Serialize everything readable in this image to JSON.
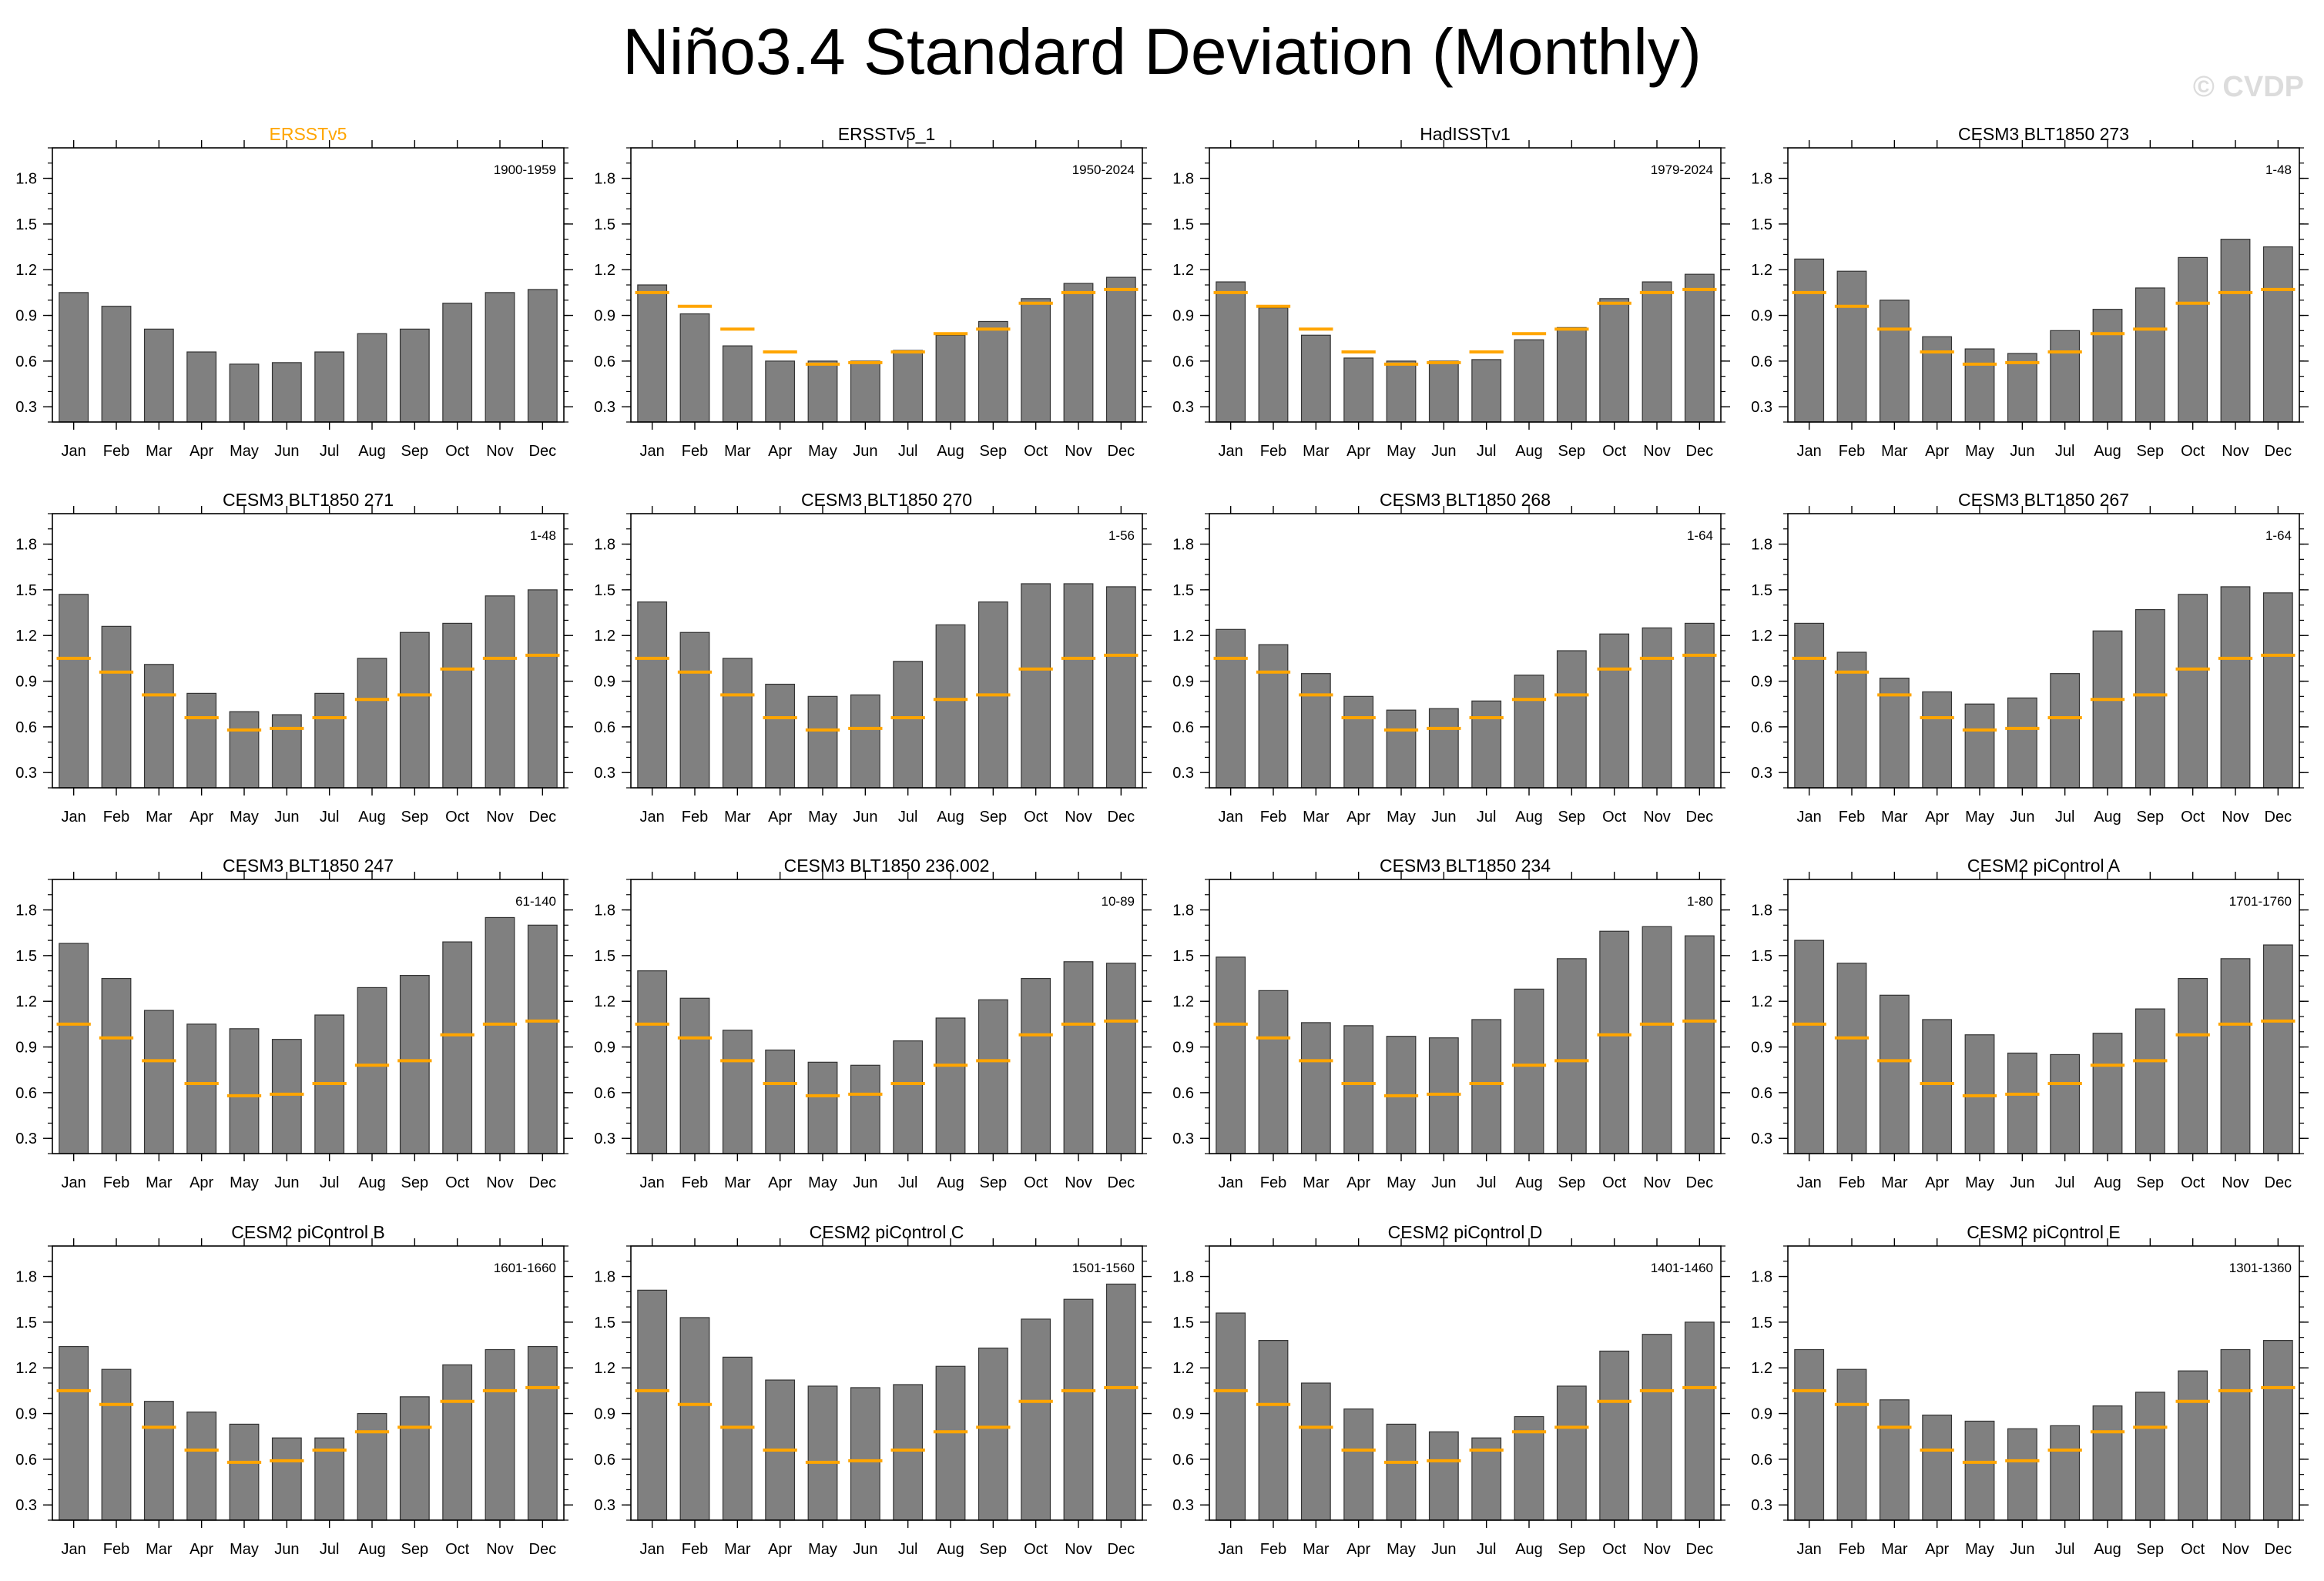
{
  "title": "Niño3.4 Standard Deviation (Monthly)",
  "watermark": "© CVDP",
  "colors": {
    "bar": "#808080",
    "bar_edge": "#333333",
    "reference": "#ffa500",
    "reference_title": "#ffa500",
    "text": "#000000"
  },
  "months": [
    "Jan",
    "Feb",
    "Mar",
    "Apr",
    "May",
    "Jun",
    "Jul",
    "Aug",
    "Sep",
    "Oct",
    "Nov",
    "Dec"
  ],
  "chart_data": [
    {
      "type": "bar",
      "title": "ERSSTv5",
      "title_color": "#ffa500",
      "period": "1900-1959",
      "ylim": [
        0.2,
        2.0
      ],
      "yticks": [
        0.3,
        0.6,
        0.9,
        1.2,
        1.5,
        1.8
      ],
      "categories": [
        "Jan",
        "Feb",
        "Mar",
        "Apr",
        "May",
        "Jun",
        "Jul",
        "Aug",
        "Sep",
        "Oct",
        "Nov",
        "Dec"
      ],
      "values": [
        1.05,
        0.96,
        0.81,
        0.66,
        0.58,
        0.59,
        0.66,
        0.78,
        0.81,
        0.98,
        1.05,
        1.07
      ],
      "reference": null
    },
    {
      "type": "bar",
      "title": "ERSSTv5_1",
      "title_color": "#000000",
      "period": "1950-2024",
      "ylim": [
        0.2,
        2.0
      ],
      "yticks": [
        0.3,
        0.6,
        0.9,
        1.2,
        1.5,
        1.8
      ],
      "categories": [
        "Jan",
        "Feb",
        "Mar",
        "Apr",
        "May",
        "Jun",
        "Jul",
        "Aug",
        "Sep",
        "Oct",
        "Nov",
        "Dec"
      ],
      "values": [
        1.1,
        0.91,
        0.7,
        0.6,
        0.6,
        0.6,
        0.67,
        0.77,
        0.86,
        1.01,
        1.11,
        1.15
      ],
      "reference": [
        1.05,
        0.96,
        0.81,
        0.66,
        0.58,
        0.59,
        0.66,
        0.78,
        0.81,
        0.98,
        1.05,
        1.07
      ]
    },
    {
      "type": "bar",
      "title": "HadISSTv1",
      "title_color": "#000000",
      "period": "1979-2024",
      "ylim": [
        0.2,
        2.0
      ],
      "yticks": [
        0.3,
        0.6,
        0.9,
        1.2,
        1.5,
        1.8
      ],
      "categories": [
        "Jan",
        "Feb",
        "Mar",
        "Apr",
        "May",
        "Jun",
        "Jul",
        "Aug",
        "Sep",
        "Oct",
        "Nov",
        "Dec"
      ],
      "values": [
        1.12,
        0.95,
        0.77,
        0.62,
        0.6,
        0.6,
        0.61,
        0.74,
        0.82,
        1.01,
        1.12,
        1.17
      ],
      "reference": [
        1.05,
        0.96,
        0.81,
        0.66,
        0.58,
        0.59,
        0.66,
        0.78,
        0.81,
        0.98,
        1.05,
        1.07
      ]
    },
    {
      "type": "bar",
      "title": "CESM3 BLT1850 273",
      "title_color": "#000000",
      "period": "1-48",
      "ylim": [
        0.2,
        2.0
      ],
      "yticks": [
        0.3,
        0.6,
        0.9,
        1.2,
        1.5,
        1.8
      ],
      "categories": [
        "Jan",
        "Feb",
        "Mar",
        "Apr",
        "May",
        "Jun",
        "Jul",
        "Aug",
        "Sep",
        "Oct",
        "Nov",
        "Dec"
      ],
      "values": [
        1.27,
        1.19,
        1.0,
        0.76,
        0.68,
        0.65,
        0.8,
        0.94,
        1.08,
        1.28,
        1.4,
        1.35
      ],
      "reference": [
        1.05,
        0.96,
        0.81,
        0.66,
        0.58,
        0.59,
        0.66,
        0.78,
        0.81,
        0.98,
        1.05,
        1.07
      ]
    },
    {
      "type": "bar",
      "title": "CESM3 BLT1850 271",
      "title_color": "#000000",
      "period": "1-48",
      "ylim": [
        0.2,
        2.0
      ],
      "yticks": [
        0.3,
        0.6,
        0.9,
        1.2,
        1.5,
        1.8
      ],
      "categories": [
        "Jan",
        "Feb",
        "Mar",
        "Apr",
        "May",
        "Jun",
        "Jul",
        "Aug",
        "Sep",
        "Oct",
        "Nov",
        "Dec"
      ],
      "values": [
        1.47,
        1.26,
        1.01,
        0.82,
        0.7,
        0.68,
        0.82,
        1.05,
        1.22,
        1.28,
        1.46,
        1.5
      ],
      "reference": [
        1.05,
        0.96,
        0.81,
        0.66,
        0.58,
        0.59,
        0.66,
        0.78,
        0.81,
        0.98,
        1.05,
        1.07
      ]
    },
    {
      "type": "bar",
      "title": "CESM3 BLT1850 270",
      "title_color": "#000000",
      "period": "1-56",
      "ylim": [
        0.2,
        2.0
      ],
      "yticks": [
        0.3,
        0.6,
        0.9,
        1.2,
        1.5,
        1.8
      ],
      "categories": [
        "Jan",
        "Feb",
        "Mar",
        "Apr",
        "May",
        "Jun",
        "Jul",
        "Aug",
        "Sep",
        "Oct",
        "Nov",
        "Dec"
      ],
      "values": [
        1.42,
        1.22,
        1.05,
        0.88,
        0.8,
        0.81,
        1.03,
        1.27,
        1.42,
        1.54,
        1.54,
        1.52
      ],
      "reference": [
        1.05,
        0.96,
        0.81,
        0.66,
        0.58,
        0.59,
        0.66,
        0.78,
        0.81,
        0.98,
        1.05,
        1.07
      ]
    },
    {
      "type": "bar",
      "title": "CESM3 BLT1850 268",
      "title_color": "#000000",
      "period": "1-64",
      "ylim": [
        0.2,
        2.0
      ],
      "yticks": [
        0.3,
        0.6,
        0.9,
        1.2,
        1.5,
        1.8
      ],
      "categories": [
        "Jan",
        "Feb",
        "Mar",
        "Apr",
        "May",
        "Jun",
        "Jul",
        "Aug",
        "Sep",
        "Oct",
        "Nov",
        "Dec"
      ],
      "values": [
        1.24,
        1.14,
        0.95,
        0.8,
        0.71,
        0.72,
        0.77,
        0.94,
        1.1,
        1.21,
        1.25,
        1.28
      ],
      "reference": [
        1.05,
        0.96,
        0.81,
        0.66,
        0.58,
        0.59,
        0.66,
        0.78,
        0.81,
        0.98,
        1.05,
        1.07
      ]
    },
    {
      "type": "bar",
      "title": "CESM3 BLT1850 267",
      "title_color": "#000000",
      "period": "1-64",
      "ylim": [
        0.2,
        2.0
      ],
      "yticks": [
        0.3,
        0.6,
        0.9,
        1.2,
        1.5,
        1.8
      ],
      "categories": [
        "Jan",
        "Feb",
        "Mar",
        "Apr",
        "May",
        "Jun",
        "Jul",
        "Aug",
        "Sep",
        "Oct",
        "Nov",
        "Dec"
      ],
      "values": [
        1.28,
        1.09,
        0.92,
        0.83,
        0.75,
        0.79,
        0.95,
        1.23,
        1.37,
        1.47,
        1.52,
        1.48
      ],
      "reference": [
        1.05,
        0.96,
        0.81,
        0.66,
        0.58,
        0.59,
        0.66,
        0.78,
        0.81,
        0.98,
        1.05,
        1.07
      ]
    },
    {
      "type": "bar",
      "title": "CESM3 BLT1850 247",
      "title_color": "#000000",
      "period": "61-140",
      "ylim": [
        0.2,
        2.0
      ],
      "yticks": [
        0.3,
        0.6,
        0.9,
        1.2,
        1.5,
        1.8
      ],
      "categories": [
        "Jan",
        "Feb",
        "Mar",
        "Apr",
        "May",
        "Jun",
        "Jul",
        "Aug",
        "Sep",
        "Oct",
        "Nov",
        "Dec"
      ],
      "values": [
        1.58,
        1.35,
        1.14,
        1.05,
        1.02,
        0.95,
        1.11,
        1.29,
        1.37,
        1.59,
        1.75,
        1.7
      ],
      "reference": [
        1.05,
        0.96,
        0.81,
        0.66,
        0.58,
        0.59,
        0.66,
        0.78,
        0.81,
        0.98,
        1.05,
        1.07
      ]
    },
    {
      "type": "bar",
      "title": "CESM3 BLT1850 236.002",
      "title_color": "#000000",
      "period": "10-89",
      "ylim": [
        0.2,
        2.0
      ],
      "yticks": [
        0.3,
        0.6,
        0.9,
        1.2,
        1.5,
        1.8
      ],
      "categories": [
        "Jan",
        "Feb",
        "Mar",
        "Apr",
        "May",
        "Jun",
        "Jul",
        "Aug",
        "Sep",
        "Oct",
        "Nov",
        "Dec"
      ],
      "values": [
        1.4,
        1.22,
        1.01,
        0.88,
        0.8,
        0.78,
        0.94,
        1.09,
        1.21,
        1.35,
        1.46,
        1.45
      ],
      "reference": [
        1.05,
        0.96,
        0.81,
        0.66,
        0.58,
        0.59,
        0.66,
        0.78,
        0.81,
        0.98,
        1.05,
        1.07
      ]
    },
    {
      "type": "bar",
      "title": "CESM3 BLT1850 234",
      "title_color": "#000000",
      "period": "1-80",
      "ylim": [
        0.2,
        2.0
      ],
      "yticks": [
        0.3,
        0.6,
        0.9,
        1.2,
        1.5,
        1.8
      ],
      "categories": [
        "Jan",
        "Feb",
        "Mar",
        "Apr",
        "May",
        "Jun",
        "Jul",
        "Aug",
        "Sep",
        "Oct",
        "Nov",
        "Dec"
      ],
      "values": [
        1.49,
        1.27,
        1.06,
        1.04,
        0.97,
        0.96,
        1.08,
        1.28,
        1.48,
        1.66,
        1.69,
        1.63
      ],
      "reference": [
        1.05,
        0.96,
        0.81,
        0.66,
        0.58,
        0.59,
        0.66,
        0.78,
        0.81,
        0.98,
        1.05,
        1.07
      ]
    },
    {
      "type": "bar",
      "title": "CESM2 piControl A",
      "title_color": "#000000",
      "period": "1701-1760",
      "ylim": [
        0.2,
        2.0
      ],
      "yticks": [
        0.3,
        0.6,
        0.9,
        1.2,
        1.5,
        1.8
      ],
      "categories": [
        "Jan",
        "Feb",
        "Mar",
        "Apr",
        "May",
        "Jun",
        "Jul",
        "Aug",
        "Sep",
        "Oct",
        "Nov",
        "Dec"
      ],
      "values": [
        1.6,
        1.45,
        1.24,
        1.08,
        0.98,
        0.86,
        0.85,
        0.99,
        1.15,
        1.35,
        1.48,
        1.57
      ],
      "reference": [
        1.05,
        0.96,
        0.81,
        0.66,
        0.58,
        0.59,
        0.66,
        0.78,
        0.81,
        0.98,
        1.05,
        1.07
      ]
    },
    {
      "type": "bar",
      "title": "CESM2 piControl B",
      "title_color": "#000000",
      "period": "1601-1660",
      "ylim": [
        0.2,
        2.0
      ],
      "yticks": [
        0.3,
        0.6,
        0.9,
        1.2,
        1.5,
        1.8
      ],
      "categories": [
        "Jan",
        "Feb",
        "Mar",
        "Apr",
        "May",
        "Jun",
        "Jul",
        "Aug",
        "Sep",
        "Oct",
        "Nov",
        "Dec"
      ],
      "values": [
        1.34,
        1.19,
        0.98,
        0.91,
        0.83,
        0.74,
        0.74,
        0.9,
        1.01,
        1.22,
        1.32,
        1.34
      ],
      "reference": [
        1.05,
        0.96,
        0.81,
        0.66,
        0.58,
        0.59,
        0.66,
        0.78,
        0.81,
        0.98,
        1.05,
        1.07
      ]
    },
    {
      "type": "bar",
      "title": "CESM2 piControl C",
      "title_color": "#000000",
      "period": "1501-1560",
      "ylim": [
        0.2,
        2.0
      ],
      "yticks": [
        0.3,
        0.6,
        0.9,
        1.2,
        1.5,
        1.8
      ],
      "categories": [
        "Jan",
        "Feb",
        "Mar",
        "Apr",
        "May",
        "Jun",
        "Jul",
        "Aug",
        "Sep",
        "Oct",
        "Nov",
        "Dec"
      ],
      "values": [
        1.71,
        1.53,
        1.27,
        1.12,
        1.08,
        1.07,
        1.09,
        1.21,
        1.33,
        1.52,
        1.65,
        1.75
      ],
      "reference": [
        1.05,
        0.96,
        0.81,
        0.66,
        0.58,
        0.59,
        0.66,
        0.78,
        0.81,
        0.98,
        1.05,
        1.07
      ]
    },
    {
      "type": "bar",
      "title": "CESM2 piControl D",
      "title_color": "#000000",
      "period": "1401-1460",
      "ylim": [
        0.2,
        2.0
      ],
      "yticks": [
        0.3,
        0.6,
        0.9,
        1.2,
        1.5,
        1.8
      ],
      "categories": [
        "Jan",
        "Feb",
        "Mar",
        "Apr",
        "May",
        "Jun",
        "Jul",
        "Aug",
        "Sep",
        "Oct",
        "Nov",
        "Dec"
      ],
      "values": [
        1.56,
        1.38,
        1.1,
        0.93,
        0.83,
        0.78,
        0.74,
        0.88,
        1.08,
        1.31,
        1.42,
        1.5
      ],
      "reference": [
        1.05,
        0.96,
        0.81,
        0.66,
        0.58,
        0.59,
        0.66,
        0.78,
        0.81,
        0.98,
        1.05,
        1.07
      ]
    },
    {
      "type": "bar",
      "title": "CESM2 piControl E",
      "title_color": "#000000",
      "period": "1301-1360",
      "ylim": [
        0.2,
        2.0
      ],
      "yticks": [
        0.3,
        0.6,
        0.9,
        1.2,
        1.5,
        1.8
      ],
      "categories": [
        "Jan",
        "Feb",
        "Mar",
        "Apr",
        "May",
        "Jun",
        "Jul",
        "Aug",
        "Sep",
        "Oct",
        "Nov",
        "Dec"
      ],
      "values": [
        1.32,
        1.19,
        0.99,
        0.89,
        0.85,
        0.8,
        0.82,
        0.95,
        1.04,
        1.18,
        1.32,
        1.38
      ],
      "reference": [
        1.05,
        0.96,
        0.81,
        0.66,
        0.58,
        0.59,
        0.66,
        0.78,
        0.81,
        0.98,
        1.05,
        1.07
      ]
    }
  ]
}
